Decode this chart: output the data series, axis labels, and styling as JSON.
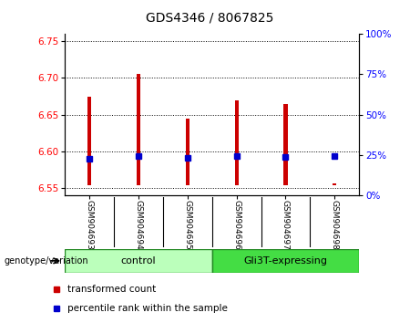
{
  "title": "GDS4346 / 8067825",
  "samples": [
    "GSM904693",
    "GSM904694",
    "GSM904695",
    "GSM904696",
    "GSM904697",
    "GSM904698"
  ],
  "bar_bottoms": [
    6.554,
    6.554,
    6.554,
    6.554,
    6.554,
    6.554
  ],
  "bar_tops": [
    6.675,
    6.706,
    6.645,
    6.67,
    6.664,
    6.556
  ],
  "blue_values": [
    6.59,
    6.594,
    6.591,
    6.594,
    6.593,
    6.594
  ],
  "ylim_left": [
    6.54,
    6.76
  ],
  "ylim_right": [
    0,
    100
  ],
  "yticks_left": [
    6.55,
    6.6,
    6.65,
    6.7,
    6.75
  ],
  "yticks_right": [
    0,
    25,
    50,
    75,
    100
  ],
  "bar_color": "#cc0000",
  "blue_color": "#0000cc",
  "group_labels": [
    "control",
    "Gli3T-expressing"
  ],
  "group_ranges": [
    [
      0,
      2
    ],
    [
      3,
      5
    ]
  ],
  "group_color_light": "#bbffbb",
  "group_color_dark": "#44dd44",
  "group_border_color": "#228822",
  "legend_items": [
    "transformed count",
    "percentile rank within the sample"
  ],
  "genotype_label": "genotype/variation",
  "bg_color": "#ffffff",
  "plot_bg": "#ffffff",
  "sample_label_bg": "#cccccc",
  "title_fontsize": 10,
  "tick_fontsize": 7.5,
  "bar_width": 0.08,
  "blue_markersize": 5
}
